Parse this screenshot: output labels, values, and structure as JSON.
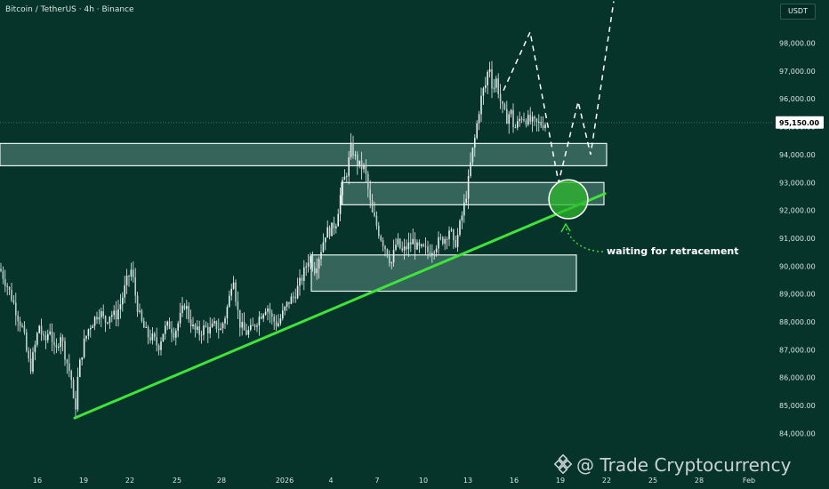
{
  "header": {
    "title": "Bitcoin / TetherUS · 4h · Binance"
  },
  "price_axis": {
    "currency": "USDT"
  },
  "annotation": {
    "text": "waiting for retracement"
  },
  "watermark": {
    "text": "@ Trade Cryptocurrency"
  },
  "colors": {
    "background": "#06332a",
    "trendline": "#3fe33a",
    "zone_fill": "#3e6f63",
    "zone_stroke": "#e8f2ee",
    "projection": "#ffffff",
    "target_circle": "#2eb82e",
    "candle": "#e6efec"
  },
  "chart_data": {
    "type": "candlestick",
    "title": "Bitcoin / TetherUS · 4h · Binance",
    "y_axis": {
      "ticks": [
        84000,
        85000,
        86000,
        87000,
        88000,
        89000,
        90000,
        91000,
        92000,
        93000,
        94000,
        95000,
        96000,
        97000,
        98000
      ],
      "labels": [
        "84,000.00",
        "85,000.00",
        "86,000.00",
        "87,000.00",
        "88,000.00",
        "89,000.00",
        "90,000.00",
        "91,000.00",
        "92,000.00",
        "93,000.00",
        "94,000.00",
        "95,000.00",
        "96,000.00",
        "97,000.00",
        "98,000.00"
      ],
      "range": [
        83200,
        99300
      ]
    },
    "current_price": {
      "value": 95150,
      "label": "95,150.00"
    },
    "x_axis": {
      "labels": [
        "16",
        "19",
        "22",
        "25",
        "28",
        "2026",
        "4",
        "7",
        "10",
        "13",
        "16",
        "19",
        "22",
        "25",
        "28",
        "Feb"
      ],
      "label_x": [
        42,
        94,
        146,
        199,
        249,
        320,
        372,
        424,
        476,
        526,
        578,
        630,
        682,
        734,
        786,
        842
      ]
    },
    "price_path": [
      [
        0,
        89900
      ],
      [
        8,
        89300
      ],
      [
        14,
        88800
      ],
      [
        20,
        88200
      ],
      [
        26,
        87700
      ],
      [
        30,
        86900
      ],
      [
        34,
        86300
      ],
      [
        38,
        86900
      ],
      [
        44,
        87900
      ],
      [
        50,
        87200
      ],
      [
        56,
        87800
      ],
      [
        62,
        86800
      ],
      [
        68,
        87600
      ],
      [
        74,
        86700
      ],
      [
        80,
        86000
      ],
      [
        84,
        84600
      ],
      [
        88,
        86200
      ],
      [
        94,
        87200
      ],
      [
        100,
        87800
      ],
      [
        106,
        88100
      ],
      [
        112,
        88400
      ],
      [
        118,
        88000
      ],
      [
        124,
        88300
      ],
      [
        130,
        88200
      ],
      [
        136,
        88700
      ],
      [
        142,
        89400
      ],
      [
        148,
        89900
      ],
      [
        152,
        89000
      ],
      [
        156,
        88300
      ],
      [
        160,
        87900
      ],
      [
        166,
        87500
      ],
      [
        172,
        87400
      ],
      [
        178,
        87100
      ],
      [
        184,
        87700
      ],
      [
        190,
        87900
      ],
      [
        196,
        87600
      ],
      [
        202,
        88100
      ],
      [
        208,
        88700
      ],
      [
        212,
        88200
      ],
      [
        218,
        87700
      ],
      [
        224,
        87600
      ],
      [
        230,
        87800
      ],
      [
        236,
        87700
      ],
      [
        242,
        87900
      ],
      [
        248,
        87700
      ],
      [
        254,
        88300
      ],
      [
        258,
        88900
      ],
      [
        262,
        89800
      ],
      [
        266,
        88600
      ],
      [
        270,
        87900
      ],
      [
        276,
        87600
      ],
      [
        282,
        87700
      ],
      [
        288,
        88000
      ],
      [
        294,
        88300
      ],
      [
        300,
        88600
      ],
      [
        306,
        88100
      ],
      [
        312,
        87900
      ],
      [
        318,
        88300
      ],
      [
        324,
        88700
      ],
      [
        330,
        88900
      ],
      [
        336,
        89300
      ],
      [
        342,
        89800
      ],
      [
        348,
        90400
      ],
      [
        354,
        89900
      ],
      [
        360,
        90500
      ],
      [
        366,
        91200
      ],
      [
        372,
        91300
      ],
      [
        378,
        91600
      ],
      [
        384,
        92800
      ],
      [
        390,
        93400
      ],
      [
        395,
        94300
      ],
      [
        399,
        93900
      ],
      [
        404,
        93600
      ],
      [
        410,
        93500
      ],
      [
        414,
        92700
      ],
      [
        418,
        91900
      ],
      [
        422,
        91600
      ],
      [
        426,
        91200
      ],
      [
        430,
        90900
      ],
      [
        434,
        90600
      ],
      [
        440,
        90100
      ],
      [
        446,
        90900
      ],
      [
        452,
        90500
      ],
      [
        458,
        90700
      ],
      [
        464,
        90900
      ],
      [
        470,
        90600
      ],
      [
        476,
        90600
      ],
      [
        482,
        90500
      ],
      [
        488,
        90700
      ],
      [
        494,
        90900
      ],
      [
        500,
        91000
      ],
      [
        506,
        91400
      ],
      [
        510,
        90700
      ],
      [
        514,
        91000
      ],
      [
        518,
        91600
      ],
      [
        522,
        92200
      ],
      [
        526,
        92900
      ],
      [
        530,
        93900
      ],
      [
        534,
        94600
      ],
      [
        538,
        95500
      ],
      [
        542,
        96200
      ],
      [
        546,
        96500
      ],
      [
        550,
        97300
      ],
      [
        554,
        96300
      ],
      [
        558,
        96700
      ],
      [
        562,
        96000
      ],
      [
        566,
        95500
      ],
      [
        570,
        95300
      ],
      [
        574,
        95600
      ],
      [
        578,
        94900
      ],
      [
        582,
        95100
      ],
      [
        586,
        95400
      ],
      [
        590,
        95300
      ],
      [
        596,
        95200
      ],
      [
        602,
        95100
      ],
      [
        608,
        95100
      ],
      [
        614,
        95150
      ]
    ],
    "zones": [
      {
        "name": "upper-zone",
        "x_start": 0,
        "x_end": 682,
        "top": 94400,
        "bottom": 93600
      },
      {
        "name": "middle-zone",
        "x_start": 384,
        "x_end": 679,
        "top": 93000,
        "bottom": 92200
      },
      {
        "name": "lower-zone",
        "x_start": 350,
        "x_end": 648,
        "top": 90400,
        "bottom": 89100
      }
    ],
    "trendline": {
      "start": [
        84,
        84550
      ],
      "end": [
        680,
        92600
      ]
    },
    "projection_path": [
      [
        566,
        96300
      ],
      [
        596,
        98400
      ],
      [
        628,
        93000
      ],
      [
        650,
        95900
      ],
      [
        664,
        94000
      ],
      [
        690,
        99500
      ]
    ],
    "target_circle": {
      "center": [
        639,
        92400
      ],
      "radius_price": 700
    }
  }
}
